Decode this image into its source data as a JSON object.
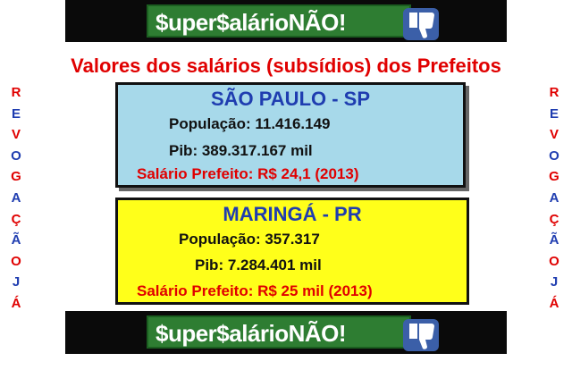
{
  "banner": {
    "text": "$uper$alárioNÃO!"
  },
  "headline": "Valores dos salários (subsídios) dos Prefeitos",
  "side_letters": [
    "R",
    "E",
    "V",
    "O",
    "G",
    "A",
    "Ç",
    "Ã",
    "O",
    "J",
    "Á"
  ],
  "colors": {
    "blue": "#1f3db0",
    "red": "#e00000"
  },
  "cards": [
    {
      "city": "SÃO PAULO - SP",
      "population": "População: 11.416.149",
      "pib": "Pib: 389.317.167 mil",
      "salary": "Salário Prefeito: R$ 24,1 (2013)"
    },
    {
      "city": "MARINGÁ - PR",
      "population": "População: 357.317",
      "pib": "Pib: 7.284.401 mil",
      "salary": "Salário Prefeito: R$ 25 mil (2013)"
    }
  ]
}
